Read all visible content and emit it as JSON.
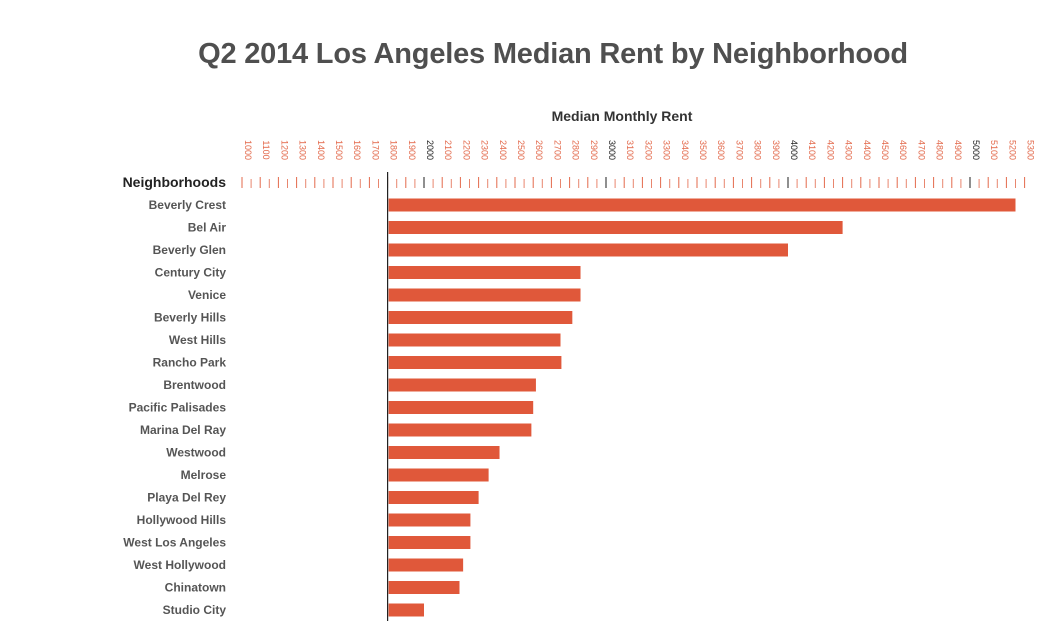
{
  "chart_data": {
    "type": "bar",
    "orientation": "horizontal",
    "title": "Q2 2014 Los Angeles Median Rent by Neighborhood",
    "xlabel": "Median Monthly Rent",
    "ylabel": "Neighborhoods",
    "xlim": [
      1000,
      5300
    ],
    "x_ticks": [
      1000,
      1100,
      1200,
      1300,
      1400,
      1500,
      1600,
      1700,
      1800,
      1900,
      2000,
      2100,
      2200,
      2300,
      2400,
      2500,
      2600,
      2700,
      2800,
      2900,
      3000,
      3100,
      3200,
      3300,
      3400,
      3500,
      3600,
      3700,
      3800,
      3900,
      4000,
      4100,
      4200,
      4300,
      4400,
      4500,
      4600,
      4700,
      4800,
      4900,
      5000,
      5100,
      5200,
      5300
    ],
    "highlight_ticks": [
      2000,
      3000,
      4000,
      5000
    ],
    "bar_baseline": 1800,
    "categories": [
      "Beverly Crest",
      "Bel Air",
      "Beverly Glen",
      "Century City",
      "Venice",
      "Beverly Hills",
      "West Hills",
      "Rancho Park",
      "Brentwood",
      "Pacific Palisades",
      "Marina Del Ray",
      "Westwood",
      "Melrose",
      "Playa Del Rey",
      "Hollywood Hills",
      "West Los Angeles",
      "West Hollywood",
      "Chinatown",
      "Studio City"
    ],
    "values": [
      5250,
      4300,
      4000,
      2860,
      2860,
      2815,
      2750,
      2755,
      2615,
      2600,
      2590,
      2415,
      2355,
      2300,
      2255,
      2255,
      2215,
      2195,
      2000
    ],
    "colors": {
      "bar": "#e0583a",
      "tick": "#e3694b",
      "tick_highlight": "#1f1f1f",
      "axis": "#222222"
    }
  }
}
